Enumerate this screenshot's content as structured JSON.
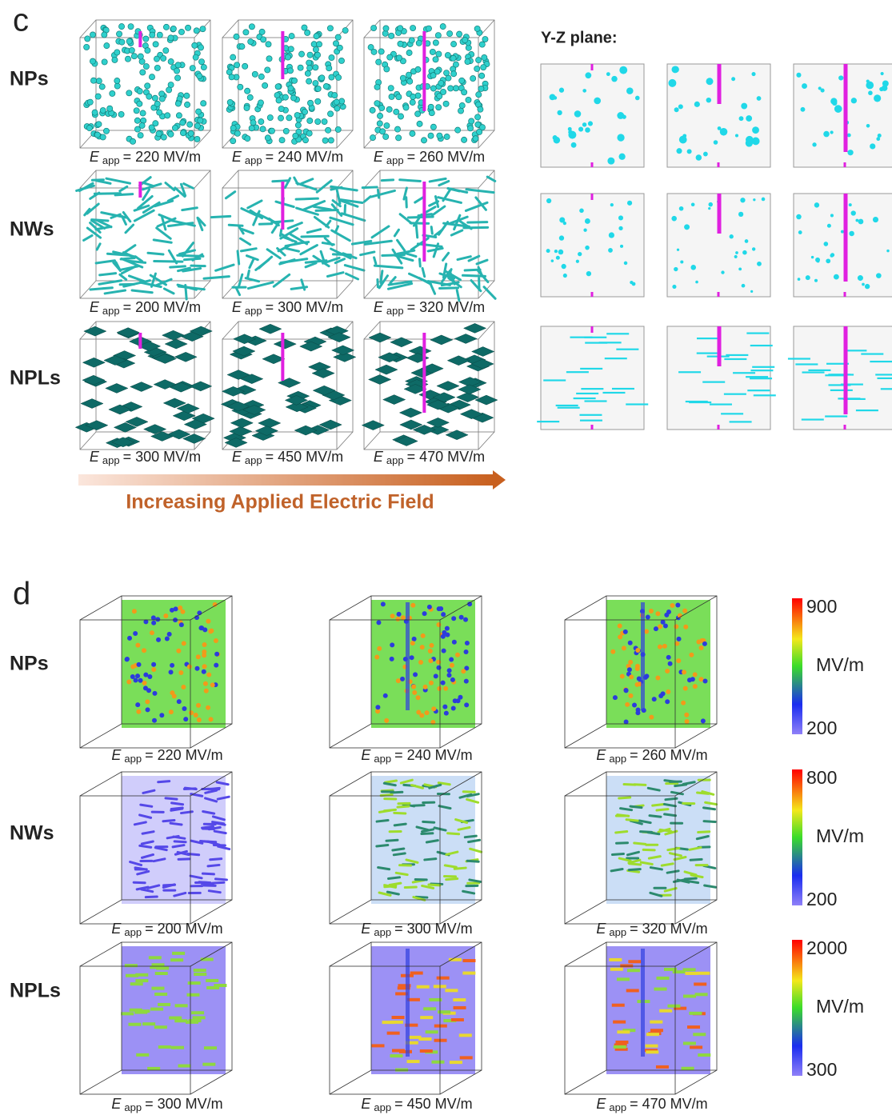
{
  "panel_c": {
    "letter": "c",
    "yz_title": "Y-Z plane:",
    "arrow_caption": "Increasing Applied Electric Field",
    "rows": [
      {
        "name": "NPs",
        "labels": [
          {
            "symbol": "E",
            "sub": "app",
            "rest": "= 220 MV/m"
          },
          {
            "symbol": "E",
            "sub": "app",
            "rest": "= 240 MV/m"
          },
          {
            "symbol": "E",
            "sub": "app",
            "rest": "= 260 MV/m"
          }
        ]
      },
      {
        "name": "NWs",
        "labels": [
          {
            "symbol": "E",
            "sub": "app",
            "rest": "= 200 MV/m"
          },
          {
            "symbol": "E",
            "sub": "app",
            "rest": "= 300 MV/m"
          },
          {
            "symbol": "E",
            "sub": "app",
            "rest": "= 320 MV/m"
          }
        ]
      },
      {
        "name": "NPLs",
        "labels": [
          {
            "symbol": "E",
            "sub": "app",
            "rest": "= 300 MV/m"
          },
          {
            "symbol": "E",
            "sub": "app",
            "rest": "= 450 MV/m"
          },
          {
            "symbol": "E",
            "sub": "app",
            "rest": "= 470 MV/m"
          }
        ]
      }
    ]
  },
  "panel_d": {
    "letter": "d",
    "rows": [
      {
        "name": "NPs",
        "labels": [
          {
            "symbol": "E",
            "sub": "app",
            "rest": "= 220 MV/m"
          },
          {
            "symbol": "E",
            "sub": "app",
            "rest": "= 240 MV/m"
          },
          {
            "symbol": "E",
            "sub": "app",
            "rest": "= 260 MV/m"
          }
        ],
        "colorbar": {
          "max": 900,
          "unit": "MV/m",
          "min": 200
        }
      },
      {
        "name": "NWs",
        "labels": [
          {
            "symbol": "E",
            "sub": "app",
            "rest": "= 200 MV/m"
          },
          {
            "symbol": "E",
            "sub": "app",
            "rest": "= 300 MV/m"
          },
          {
            "symbol": "E",
            "sub": "app",
            "rest": "= 320 MV/m"
          }
        ],
        "colorbar": {
          "max": 800,
          "unit": "MV/m",
          "min": 200
        }
      },
      {
        "name": "NPLs",
        "labels": [
          {
            "symbol": "E",
            "sub": "app",
            "rest": "= 300 MV/m"
          },
          {
            "symbol": "E",
            "sub": "app",
            "rest": "= 450 MV/m"
          },
          {
            "symbol": "E",
            "sub": "app",
            "rest": "= 470 MV/m"
          }
        ],
        "colorbar": {
          "max": 2000,
          "unit": "MV/m",
          "min": 300
        }
      }
    ]
  }
}
